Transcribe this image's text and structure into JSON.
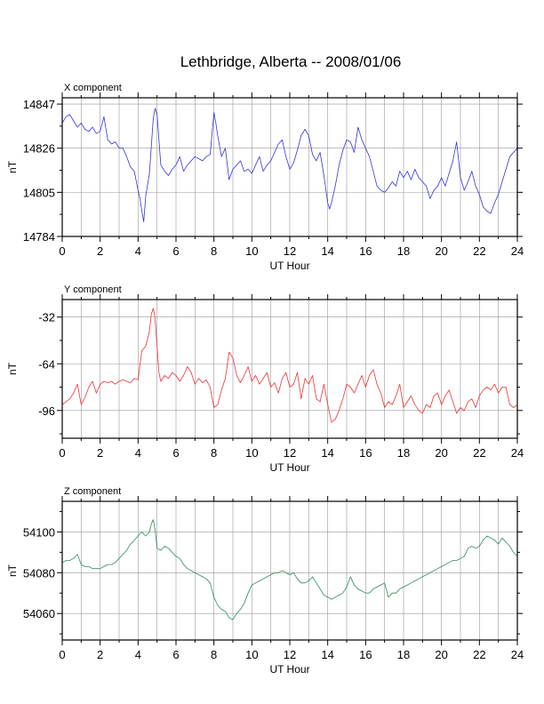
{
  "title": "Lethbridge, Alberta -- 2008/01/06",
  "chart_data": [
    {
      "type": "line",
      "label": "X component",
      "ylabel": "nT",
      "xlabel": "UT Hour",
      "xlim": [
        0,
        24
      ],
      "ylim": [
        14784,
        14850
      ],
      "xticks": [
        0,
        2,
        4,
        6,
        8,
        10,
        12,
        14,
        16,
        18,
        20,
        22,
        24
      ],
      "yticks": [
        14784,
        14805,
        14826,
        14847
      ],
      "grid": true,
      "color": "#3333dd",
      "series": [
        {
          "x": [
            0,
            0.2,
            0.4,
            0.6,
            0.8,
            1.0,
            1.2,
            1.4,
            1.6,
            1.8,
            2.0,
            2.2,
            2.4,
            2.6,
            2.8,
            3.0,
            3.2,
            3.4,
            3.6,
            3.8,
            4.0,
            4.1,
            4.2,
            4.3,
            4.4,
            4.6,
            4.8,
            4.9,
            5.0,
            5.1,
            5.2,
            5.4,
            5.6,
            5.8,
            6.0,
            6.2,
            6.4,
            6.6,
            6.8,
            7.0,
            7.2,
            7.4,
            7.6,
            7.8,
            8.0,
            8.1,
            8.2,
            8.4,
            8.6,
            8.8,
            9.0,
            9.2,
            9.4,
            9.6,
            9.8,
            10.0,
            10.2,
            10.4,
            10.6,
            10.8,
            11.0,
            11.2,
            11.4,
            11.6,
            11.8,
            12.0,
            12.2,
            12.4,
            12.6,
            12.8,
            13.0,
            13.2,
            13.4,
            13.6,
            13.8,
            14.0,
            14.1,
            14.2,
            14.4,
            14.6,
            14.8,
            15.0,
            15.2,
            15.4,
            15.6,
            15.8,
            16.0,
            16.2,
            16.4,
            16.6,
            16.8,
            17.0,
            17.2,
            17.4,
            17.6,
            17.8,
            18.0,
            18.2,
            18.4,
            18.6,
            18.8,
            19.0,
            19.2,
            19.4,
            19.6,
            19.8,
            20.0,
            20.2,
            20.4,
            20.6,
            20.8,
            21.0,
            21.2,
            21.4,
            21.6,
            21.8,
            22.0,
            22.2,
            22.4,
            22.6,
            22.8,
            23.0,
            23.2,
            23.4,
            23.6,
            23.8,
            24.0
          ],
          "values": [
            14838,
            14841,
            14842,
            14839,
            14836,
            14838,
            14835,
            14834,
            14836,
            14833,
            14834,
            14841,
            14830,
            14828,
            14829,
            14826,
            14826,
            14822,
            14817,
            14815,
            14806,
            14802,
            14796,
            14791,
            14803,
            14814,
            14840,
            14845,
            14842,
            14830,
            14818,
            14815,
            14813,
            14816,
            14818,
            14822,
            14815,
            14818,
            14820,
            14822,
            14821,
            14820,
            14822,
            14823,
            14843,
            14838,
            14832,
            14822,
            14826,
            14811,
            14816,
            14818,
            14820,
            14815,
            14816,
            14814,
            14818,
            14822,
            14815,
            14818,
            14820,
            14824,
            14828,
            14830,
            14822,
            14816,
            14819,
            14825,
            14832,
            14835,
            14832,
            14823,
            14820,
            14824,
            14813,
            14800,
            14797,
            14800,
            14808,
            14818,
            14825,
            14830,
            14829,
            14824,
            14836,
            14830,
            14826,
            14822,
            14815,
            14808,
            14806,
            14805,
            14807,
            14810,
            14808,
            14815,
            14812,
            14815,
            14811,
            14816,
            14812,
            14810,
            14808,
            14802,
            14806,
            14808,
            14812,
            14808,
            14814,
            14820,
            14829,
            14812,
            14806,
            14810,
            14815,
            14808,
            14804,
            14798,
            14796,
            14795,
            14800,
            14804,
            14810,
            14816,
            14822,
            14824,
            14826
          ]
        }
      ]
    },
    {
      "type": "line",
      "label": "Y component",
      "ylabel": "nT",
      "xlabel": "UT Hour",
      "xlim": [
        0,
        24
      ],
      "ylim": [
        -115,
        -20
      ],
      "xticks": [
        0,
        2,
        4,
        6,
        8,
        10,
        12,
        14,
        16,
        18,
        20,
        22,
        24
      ],
      "yticks": [
        -96,
        -64,
        -32
      ],
      "grid": true,
      "color": "#ee3333",
      "series": [
        {
          "x": [
            0,
            0.2,
            0.4,
            0.6,
            0.8,
            1.0,
            1.2,
            1.4,
            1.6,
            1.8,
            2.0,
            2.2,
            2.4,
            2.6,
            2.8,
            3.0,
            3.2,
            3.4,
            3.6,
            3.8,
            4.0,
            4.2,
            4.4,
            4.6,
            4.7,
            4.8,
            4.9,
            5.0,
            5.1,
            5.2,
            5.4,
            5.6,
            5.8,
            6.0,
            6.2,
            6.4,
            6.6,
            6.8,
            7.0,
            7.2,
            7.4,
            7.6,
            7.8,
            8.0,
            8.2,
            8.4,
            8.6,
            8.8,
            9.0,
            9.2,
            9.4,
            9.6,
            9.8,
            10.0,
            10.2,
            10.4,
            10.6,
            10.8,
            11.0,
            11.2,
            11.4,
            11.6,
            11.8,
            12.0,
            12.2,
            12.4,
            12.6,
            12.8,
            13.0,
            13.2,
            13.4,
            13.6,
            13.8,
            14.0,
            14.2,
            14.4,
            14.6,
            14.8,
            15.0,
            15.2,
            15.4,
            15.6,
            15.8,
            16.0,
            16.2,
            16.4,
            16.6,
            16.8,
            17.0,
            17.2,
            17.4,
            17.6,
            17.8,
            18.0,
            18.2,
            18.4,
            18.6,
            18.8,
            19.0,
            19.2,
            19.4,
            19.6,
            19.8,
            20.0,
            20.2,
            20.4,
            20.6,
            20.8,
            21.0,
            21.2,
            21.4,
            21.6,
            21.8,
            22.0,
            22.2,
            22.4,
            22.6,
            22.8,
            23.0,
            23.2,
            23.4,
            23.6,
            23.8,
            24.0
          ],
          "values": [
            -92,
            -90,
            -88,
            -84,
            -78,
            -92,
            -87,
            -80,
            -76,
            -84,
            -78,
            -76,
            -77,
            -76,
            -78,
            -76,
            -75,
            -76,
            -77,
            -74,
            -75,
            -55,
            -52,
            -42,
            -30,
            -26,
            -33,
            -52,
            -70,
            -76,
            -72,
            -74,
            -70,
            -72,
            -76,
            -72,
            -66,
            -70,
            -78,
            -74,
            -77,
            -75,
            -80,
            -94,
            -92,
            -82,
            -74,
            -56,
            -60,
            -72,
            -77,
            -72,
            -66,
            -76,
            -72,
            -78,
            -74,
            -70,
            -80,
            -77,
            -84,
            -74,
            -70,
            -80,
            -78,
            -70,
            -88,
            -74,
            -78,
            -72,
            -88,
            -90,
            -78,
            -92,
            -104,
            -102,
            -96,
            -88,
            -78,
            -80,
            -84,
            -78,
            -72,
            -80,
            -72,
            -68,
            -78,
            -84,
            -94,
            -90,
            -92,
            -86,
            -78,
            -94,
            -90,
            -86,
            -92,
            -96,
            -98,
            -92,
            -94,
            -86,
            -84,
            -92,
            -86,
            -82,
            -90,
            -98,
            -94,
            -96,
            -90,
            -88,
            -94,
            -86,
            -82,
            -80,
            -82,
            -78,
            -84,
            -80,
            -80,
            -92,
            -94,
            -92
          ]
        }
      ]
    },
    {
      "type": "line",
      "label": "Z component",
      "ylabel": "nT",
      "xlabel": "UT Hour",
      "xlim": [
        0,
        24
      ],
      "ylim": [
        54047,
        54115
      ],
      "xticks": [
        0,
        2,
        4,
        6,
        8,
        10,
        12,
        14,
        16,
        18,
        20,
        22,
        24
      ],
      "yticks": [
        54060,
        54080,
        54100
      ],
      "grid": true,
      "color": "#2e8b57",
      "series": [
        {
          "x": [
            0,
            0.2,
            0.4,
            0.6,
            0.8,
            1.0,
            1.2,
            1.4,
            1.6,
            1.8,
            2.0,
            2.2,
            2.4,
            2.6,
            2.8,
            3.0,
            3.2,
            3.4,
            3.6,
            3.8,
            4.0,
            4.2,
            4.4,
            4.6,
            4.7,
            4.8,
            4.9,
            5.0,
            5.2,
            5.4,
            5.6,
            5.8,
            6.0,
            6.2,
            6.4,
            6.6,
            6.8,
            7.0,
            7.2,
            7.4,
            7.6,
            7.8,
            8.0,
            8.2,
            8.4,
            8.6,
            8.8,
            9.0,
            9.2,
            9.4,
            9.6,
            9.8,
            10.0,
            10.2,
            10.4,
            10.6,
            10.8,
            11.0,
            11.2,
            11.4,
            11.6,
            11.8,
            12.0,
            12.2,
            12.4,
            12.6,
            12.8,
            13.0,
            13.2,
            13.4,
            13.6,
            13.8,
            14.0,
            14.2,
            14.4,
            14.6,
            14.8,
            15.0,
            15.2,
            15.4,
            15.6,
            15.8,
            16.0,
            16.2,
            16.4,
            16.6,
            16.8,
            17.0,
            17.2,
            17.4,
            17.6,
            17.8,
            18.0,
            18.2,
            18.4,
            18.6,
            18.8,
            19.0,
            19.2,
            19.4,
            19.6,
            19.8,
            20.0,
            20.2,
            20.4,
            20.6,
            20.8,
            21.0,
            21.2,
            21.4,
            21.6,
            21.8,
            22.0,
            22.2,
            22.4,
            22.6,
            22.8,
            23.0,
            23.2,
            23.4,
            23.6,
            23.8,
            24.0
          ],
          "values": [
            54085,
            54086,
            54086,
            54087,
            54089,
            54084,
            54083,
            54083,
            54082,
            54082,
            54082,
            54083,
            54084,
            54084,
            54085,
            54087,
            54089,
            54091,
            54094,
            54096,
            54098,
            54100,
            54098,
            54100,
            54104,
            54106,
            54101,
            54092,
            54091,
            54093,
            54092,
            54090,
            54088,
            54087,
            54084,
            54082,
            54081,
            54080,
            54079,
            54078,
            54077,
            54075,
            54068,
            54064,
            54062,
            54061,
            54058,
            54057,
            54060,
            54062,
            54065,
            54070,
            54074,
            54075,
            54076,
            54077,
            54078,
            54079,
            54080,
            54080,
            54081,
            54080,
            54079,
            54080,
            54077,
            54075,
            54075,
            54076,
            54078,
            54075,
            54072,
            54069,
            54068,
            54067,
            54068,
            54069,
            54070,
            54073,
            54078,
            54074,
            54072,
            54071,
            54070,
            54070,
            54072,
            54073,
            54074,
            54075,
            54068,
            54070,
            54070,
            54072,
            54073,
            54074,
            54075,
            54076,
            54077,
            54078,
            54079,
            54080,
            54081,
            54082,
            54083,
            54084,
            54085,
            54086,
            54086,
            54087,
            54088,
            54092,
            54093,
            54092,
            54093,
            54096,
            54098,
            54097,
            54096,
            54094,
            54097,
            54095,
            54093,
            54090,
            54088
          ]
        }
      ]
    }
  ]
}
